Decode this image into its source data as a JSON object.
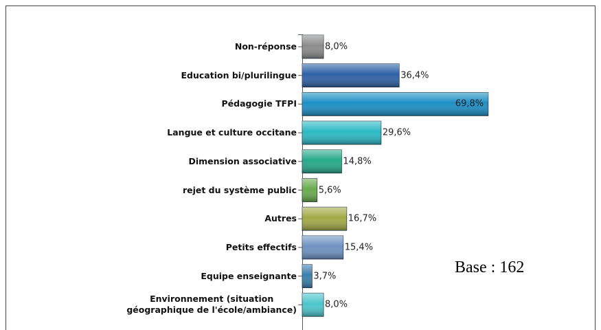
{
  "chart_data": {
    "type": "bar",
    "orientation": "horizontal",
    "categories": [
      "Non-réponse",
      "Education bi/plurilingue",
      "Pédagogie TFPI",
      "Langue et culture occitane",
      "Dimension associative",
      "rejet du  système public",
      "Autres",
      "Petits effectifs",
      "Equipe enseignante",
      "Environnement (situation\ngéographique de l'école/ambiance)"
    ],
    "values": [
      8.0,
      36.4,
      69.8,
      29.6,
      14.8,
      5.6,
      16.7,
      15.4,
      3.7,
      8.0
    ],
    "value_labels": [
      "8,0%",
      "36,4%",
      "69,8%",
      "29,6%",
      "14,8%",
      "5,6%",
      "16,7%",
      "15,4%",
      "3,7%",
      "8,0%"
    ],
    "colors": [
      "#8c8c8c",
      "#2f62a8",
      "#1e8fc4",
      "#2cb9c4",
      "#27a98a",
      "#6aab4f",
      "#a2aa47",
      "#6f92c2",
      "#3b80ad",
      "#4dc6cc"
    ],
    "xlim": [
      0,
      100
    ],
    "annotation": "Base : 162"
  }
}
